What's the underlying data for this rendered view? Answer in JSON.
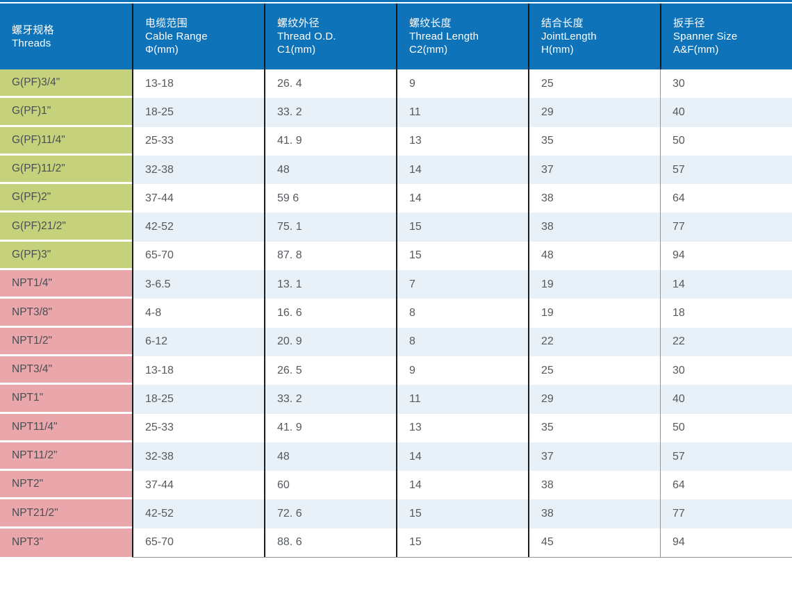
{
  "colors": {
    "header_bg": "#0e73b9",
    "grid_line": "#1c1c1c",
    "thin_line": "#8e9398",
    "row_bg": "#ffffff",
    "row_alt_bg": "#e8f1f8",
    "g_label_bg": "#c6d17c",
    "npt_label_bg": "#e9a6ab",
    "data_text": "#55595e",
    "label_text": "#4a4e53",
    "header_text": "#ffffff"
  },
  "chart_data": {
    "type": "table",
    "columns": [
      {
        "zh": "螺牙规格",
        "en": "Threads",
        "unit": ""
      },
      {
        "zh": "电缆范围",
        "en": "Cable Range",
        "unit": "Φ(mm)"
      },
      {
        "zh": "螺纹外径",
        "en": "Thread O.D.",
        "unit": "C1(mm)"
      },
      {
        "zh": "螺纹长度",
        "en": "Thread Length",
        "unit": "C2(mm)"
      },
      {
        "zh": "结合长度",
        "en": "JointLength",
        "unit": "H(mm)"
      },
      {
        "zh": "扳手径",
        "en": "Spanner Size",
        "unit": "A&F(mm)"
      }
    ],
    "rows": [
      {
        "group": "g",
        "cells": [
          "G(PF)3/4\"",
          "13-18",
          "26. 4",
          "9",
          "25",
          "30"
        ]
      },
      {
        "group": "g",
        "cells": [
          "G(PF)1\"",
          "18-25",
          "33. 2",
          "11",
          "29",
          "40"
        ]
      },
      {
        "group": "g",
        "cells": [
          "G(PF)11/4\"",
          "25-33",
          "41. 9",
          "13",
          "35",
          "50"
        ]
      },
      {
        "group": "g",
        "cells": [
          "G(PF)11/2\"",
          "32-38",
          "48",
          "14",
          "37",
          "57"
        ]
      },
      {
        "group": "g",
        "cells": [
          "G(PF)2\"",
          "37-44",
          "59 6",
          "14",
          "38",
          "64"
        ]
      },
      {
        "group": "g",
        "cells": [
          "G(PF)21/2\"",
          "42-52",
          "75. 1",
          "15",
          "38",
          "77"
        ]
      },
      {
        "group": "g",
        "cells": [
          "G(PF)3\"",
          "65-70",
          "87. 8",
          "15",
          "48",
          "94"
        ]
      },
      {
        "group": "npt",
        "cells": [
          "NPT1/4\"",
          "3-6.5",
          "13. 1",
          "7",
          "19",
          "14"
        ]
      },
      {
        "group": "npt",
        "cells": [
          "NPT3/8\"",
          "4-8",
          "16. 6",
          "8",
          "19",
          "18"
        ]
      },
      {
        "group": "npt",
        "cells": [
          "NPT1/2\"",
          "6-12",
          "20. 9",
          "8",
          "22",
          "22"
        ]
      },
      {
        "group": "npt",
        "cells": [
          "NPT3/4\"",
          "13-18",
          "26. 5",
          "9",
          "25",
          "30"
        ]
      },
      {
        "group": "npt",
        "cells": [
          "NPT1\"",
          "18-25",
          "33. 2",
          "11",
          "29",
          "40"
        ]
      },
      {
        "group": "npt",
        "cells": [
          "NPT11/4\"",
          "25-33",
          "41. 9",
          "13",
          "35",
          "50"
        ]
      },
      {
        "group": "npt",
        "cells": [
          "NPT11/2\"",
          "32-38",
          "48",
          "14",
          "37",
          "57"
        ]
      },
      {
        "group": "npt",
        "cells": [
          "NPT2\"",
          "37-44",
          "60",
          "14",
          "38",
          "64"
        ]
      },
      {
        "group": "npt",
        "cells": [
          "NPT21/2\"",
          "42-52",
          "72. 6",
          "15",
          "38",
          "77"
        ]
      },
      {
        "group": "npt",
        "cells": [
          "NPT3\"",
          "65-70",
          "88. 6",
          "15",
          "45",
          "94"
        ]
      }
    ]
  }
}
